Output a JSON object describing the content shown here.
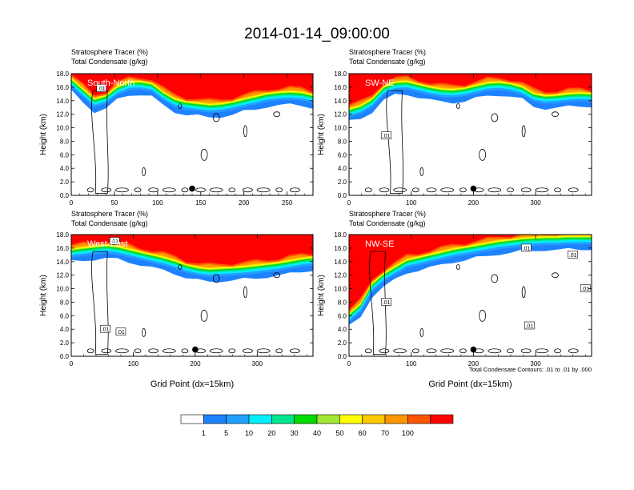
{
  "title": "2014-01-14_09:00:00",
  "var_label_1": "Stratosphere Tracer   (%)",
  "var_label_2": "Total Condensate   (g/kg)",
  "contour_note": "Total Condensate Contours: .01 to .01 by .000",
  "contour_label": ".01",
  "colors": [
    "#ffffff",
    "#1e82ff",
    "#22a0ff",
    "#00f0ff",
    "#00e68c",
    "#00dc00",
    "#a0e632",
    "#ffff00",
    "#ffc800",
    "#ff9600",
    "#ff5500",
    "#ff0000"
  ],
  "colorbar": {
    "levels": [
      "1",
      "5",
      "10",
      "20",
      "30",
      "40",
      "50",
      "60",
      "70",
      "100"
    ]
  },
  "chart_data": [
    {
      "type": "heatmap",
      "name": "South-North",
      "xlabel": "",
      "ylabel": "Height (km)",
      "xlim": [
        0,
        280
      ],
      "ylim": [
        0,
        18
      ],
      "xticks": [
        "0",
        "50",
        "100",
        "150",
        "200",
        "250"
      ],
      "yticks": [
        "0.0",
        "2.0",
        "4.0",
        "6.0",
        "8.0",
        "10.0",
        "12.0",
        "14.0",
        "16.0",
        "18.0"
      ],
      "marker_x": 140,
      "tracer_bottom_km": [
        16.0,
        14.5,
        13.0,
        13.5,
        14.8,
        15.5,
        15.6,
        15.3,
        14.0,
        13.0,
        12.6,
        12.4,
        12.2,
        12.3,
        12.6,
        13.0,
        13.4,
        13.8,
        14.0,
        14.1,
        14.0,
        13.6
      ],
      "contour_labels": [
        {
          "x": 35,
          "y": 15.8
        }
      ]
    },
    {
      "type": "heatmap",
      "name": "SW-NE",
      "xlabel": "",
      "ylabel": "Height (km)",
      "xlim": [
        0,
        390
      ],
      "ylim": [
        0,
        18
      ],
      "xticks": [
        "0",
        "100",
        "200",
        "300"
      ],
      "yticks": [
        "0.0",
        "2.0",
        "4.0",
        "6.0",
        "8.0",
        "10.0",
        "12.0",
        "14.0",
        "16.0",
        "18.0"
      ],
      "marker_x": 200,
      "tracer_bottom_km": [
        11.5,
        12.0,
        13.0,
        14.8,
        15.5,
        15.6,
        15.2,
        14.8,
        14.5,
        14.4,
        14.6,
        15.0,
        15.4,
        15.5,
        15.3,
        14.8,
        13.8,
        13.5,
        13.6,
        13.8,
        13.9,
        13.8
      ],
      "contour_labels": [
        {
          "x": 60,
          "y": 8.8
        }
      ]
    },
    {
      "type": "heatmap",
      "name": "West-East",
      "xlabel": "Grid Point (dx=15km)",
      "ylabel": "Height (km)",
      "xlim": [
        0,
        390
      ],
      "ylim": [
        0,
        18
      ],
      "xticks": [
        "0",
        "100",
        "200",
        "300"
      ],
      "yticks": [
        "0.0",
        "2.0",
        "4.0",
        "6.0",
        "8.0",
        "10.0",
        "12.0",
        "14.0",
        "16.0",
        "18.0"
      ],
      "marker_x": 200,
      "tracer_bottom_km": [
        14.6,
        14.8,
        15.0,
        15.2,
        15.0,
        14.6,
        14.2,
        13.8,
        13.4,
        12.9,
        12.3,
        11.9,
        11.7,
        11.8,
        11.9,
        12.0,
        12.2,
        12.4,
        12.6,
        12.9,
        13.2,
        13.4
      ],
      "contour_labels": [
        {
          "x": 70,
          "y": 17.0
        },
        {
          "x": 55,
          "y": 4.0
        },
        {
          "x": 80,
          "y": 3.6
        }
      ]
    },
    {
      "type": "heatmap",
      "name": "NW-SE",
      "xlabel": "Grid Point (dx=15km)",
      "ylabel": "Height (km)",
      "xlim": [
        0,
        390
      ],
      "ylim": [
        0,
        18
      ],
      "xticks": [
        "0",
        "100",
        "200",
        "300"
      ],
      "yticks": [
        "0.0",
        "2.0",
        "4.0",
        "6.0",
        "8.0",
        "10.0",
        "12.0",
        "14.0",
        "16.0",
        "18.0"
      ],
      "marker_x": 200,
      "tracer_bottom_km": [
        5.0,
        6.5,
        9.5,
        11.0,
        12.0,
        13.0,
        13.4,
        13.8,
        14.2,
        14.6,
        14.9,
        15.2,
        15.5,
        15.8,
        16.0,
        16.2,
        16.3,
        16.4,
        16.4,
        16.5,
        16.5,
        16.5
      ],
      "contour_labels": [
        {
          "x": 60,
          "y": 8.0
        },
        {
          "x": 285,
          "y": 16.0
        },
        {
          "x": 290,
          "y": 4.5
        },
        {
          "x": 360,
          "y": 15.0
        },
        {
          "x": 380,
          "y": 10.0
        }
      ]
    }
  ]
}
